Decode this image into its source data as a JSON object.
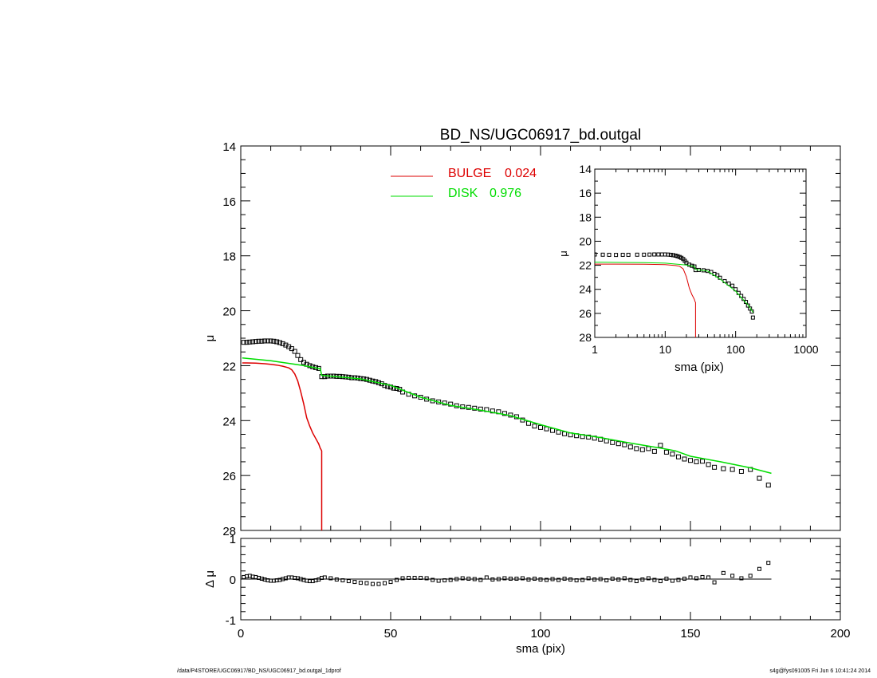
{
  "colors": {
    "bulge": "#dd0000",
    "disk": "#00dd00",
    "data": "#000000",
    "axis": "#000000"
  },
  "footer": {
    "left": "/data/P4STORE/UGC06917/BD_NS/UGC06917_bd.outgal_1dprof",
    "right": "s4g@fys091005  Fri Jun  6 10:41:24 2014"
  },
  "chart_data": [
    {
      "id": "main",
      "type": "scatter",
      "title": "BD_NS/UGC06917_bd.outgal",
      "xlabel": "",
      "ylabel": "μ",
      "xlim": [
        0,
        200
      ],
      "ylim": [
        28,
        14
      ],
      "yticks": [
        "14",
        "16",
        "18",
        "20",
        "22",
        "24",
        "26",
        "28"
      ],
      "legend": {
        "placement": "top-center",
        "entries": [
          {
            "label": "BULGE",
            "value": "0.024",
            "color": "#dd0000"
          },
          {
            "label": "DISK",
            "value": "0.976",
            "color": "#00dd00"
          }
        ]
      },
      "series": [
        {
          "name": "data",
          "marker": "square",
          "x": [
            1,
            2,
            3,
            4,
            5,
            6,
            7,
            8,
            9,
            10,
            11,
            12,
            13,
            14,
            15,
            16,
            17,
            18,
            19,
            20,
            21,
            22,
            23,
            24,
            25,
            26,
            27,
            28,
            29,
            30,
            31,
            32,
            33,
            34,
            35,
            36,
            37,
            38,
            39,
            40,
            41,
            42,
            43,
            44,
            45,
            46,
            47,
            48,
            49,
            50,
            51,
            52,
            53,
            54,
            56,
            58,
            60,
            62,
            64,
            66,
            68,
            70,
            72,
            74,
            76,
            78,
            80,
            82,
            84,
            86,
            88,
            90,
            92,
            94,
            96,
            98,
            100,
            102,
            104,
            106,
            108,
            110,
            112,
            114,
            116,
            118,
            120,
            122,
            124,
            126,
            128,
            130,
            132,
            134,
            136,
            138,
            140,
            142,
            144,
            146,
            148,
            150,
            152,
            154,
            156,
            158,
            161,
            164,
            167,
            170,
            173,
            176
          ],
          "y": [
            21.15,
            21.15,
            21.14,
            21.13,
            21.12,
            21.11,
            21.11,
            21.1,
            21.1,
            21.1,
            21.11,
            21.13,
            21.16,
            21.2,
            21.25,
            21.31,
            21.38,
            21.48,
            21.63,
            21.78,
            21.88,
            21.95,
            22.0,
            22.04,
            22.07,
            22.1,
            22.4,
            22.4,
            22.38,
            22.38,
            22.38,
            22.39,
            22.39,
            22.4,
            22.41,
            22.42,
            22.44,
            22.44,
            22.45,
            22.47,
            22.48,
            22.5,
            22.53,
            22.56,
            22.58,
            22.62,
            22.66,
            22.72,
            22.76,
            22.78,
            22.82,
            22.83,
            22.86,
            22.96,
            23.04,
            23.1,
            23.15,
            23.22,
            23.28,
            23.32,
            23.36,
            23.4,
            23.46,
            23.5,
            23.52,
            23.55,
            23.58,
            23.6,
            23.65,
            23.68,
            23.74,
            23.8,
            23.86,
            23.98,
            24.1,
            24.2,
            24.25,
            24.3,
            24.36,
            24.42,
            24.48,
            24.52,
            24.55,
            24.58,
            24.6,
            24.64,
            24.68,
            24.74,
            24.8,
            24.84,
            24.88,
            24.96,
            25.02,
            25.06,
            25.02,
            25.12,
            24.9,
            25.15,
            25.22,
            25.32,
            25.4,
            25.45,
            25.5,
            25.48,
            25.6,
            25.7,
            25.75,
            25.78,
            25.85,
            25.78,
            26.1,
            26.35
          ]
        },
        {
          "name": "BULGE",
          "type": "line",
          "color": "#dd0000",
          "x": [
            0.5,
            2,
            5,
            8,
            10,
            12,
            14,
            16,
            17,
            18,
            19,
            20,
            21,
            22,
            23,
            24,
            25,
            26,
            26.5,
            27,
            27,
            27
          ],
          "y": [
            21.9,
            21.9,
            21.91,
            21.93,
            21.95,
            21.98,
            22.02,
            22.08,
            22.15,
            22.3,
            22.55,
            22.95,
            23.4,
            23.9,
            24.2,
            24.45,
            24.65,
            24.85,
            25.0,
            25.1,
            27.0,
            28.0
          ]
        },
        {
          "name": "DISK",
          "type": "line",
          "color": "#00dd00",
          "x": [
            0.5,
            10,
            20,
            26,
            26.5,
            27,
            40,
            50,
            60,
            70,
            80,
            90,
            100,
            110,
            120,
            130,
            140,
            145,
            150,
            160,
            170,
            177
          ],
          "y": [
            21.72,
            21.82,
            21.98,
            22.1,
            22.1,
            22.35,
            22.48,
            22.72,
            23.15,
            23.45,
            23.62,
            23.82,
            24.15,
            24.45,
            24.62,
            24.82,
            25.0,
            25.1,
            25.3,
            25.5,
            25.72,
            25.92
          ]
        }
      ]
    },
    {
      "id": "residual",
      "type": "scatter",
      "xlabel": "sma (pix)",
      "ylabel": "Δ μ",
      "xlim": [
        0,
        200
      ],
      "ylim": [
        -1,
        1
      ],
      "xticks": [
        "0",
        "50",
        "100",
        "150",
        "200"
      ],
      "yticks": [
        "1",
        "0",
        "-1"
      ],
      "series": [
        {
          "name": "residual",
          "marker": "square",
          "x": [
            1,
            2,
            3,
            4,
            5,
            6,
            7,
            8,
            9,
            10,
            11,
            12,
            13,
            14,
            15,
            16,
            17,
            18,
            19,
            20,
            21,
            22,
            23,
            24,
            25,
            26,
            27,
            28,
            30,
            32,
            34,
            36,
            38,
            40,
            42,
            44,
            46,
            48,
            50,
            52,
            54,
            56,
            58,
            60,
            62,
            64,
            66,
            68,
            70,
            72,
            74,
            76,
            78,
            80,
            82,
            84,
            86,
            88,
            90,
            92,
            94,
            96,
            98,
            100,
            102,
            104,
            106,
            108,
            110,
            112,
            114,
            116,
            118,
            120,
            122,
            124,
            126,
            128,
            130,
            132,
            134,
            136,
            138,
            140,
            142,
            144,
            146,
            148,
            150,
            152,
            154,
            156,
            158,
            161,
            164,
            167,
            170,
            173,
            176
          ],
          "y": [
            0.05,
            0.07,
            0.08,
            0.06,
            0.05,
            0.03,
            0.01,
            -0.01,
            -0.03,
            -0.04,
            -0.04,
            -0.03,
            -0.02,
            0.0,
            0.02,
            0.04,
            0.04,
            0.03,
            0.02,
            0.0,
            -0.02,
            -0.04,
            -0.05,
            -0.05,
            -0.03,
            -0.01,
            0.03,
            0.04,
            0.02,
            -0.01,
            -0.03,
            -0.05,
            -0.07,
            -0.09,
            -0.1,
            -0.12,
            -0.12,
            -0.1,
            -0.07,
            -0.02,
            0.02,
            0.03,
            0.03,
            0.03,
            0.02,
            -0.02,
            -0.04,
            -0.03,
            -0.02,
            0.0,
            0.02,
            0.01,
            0.0,
            -0.02,
            0.04,
            -0.01,
            0.0,
            0.02,
            0.01,
            0.01,
            0.02,
            -0.01,
            0.01,
            -0.01,
            -0.02,
            0.0,
            -0.02,
            0.01,
            -0.01,
            -0.03,
            -0.02,
            0.02,
            -0.01,
            0.0,
            -0.03,
            0.01,
            -0.01,
            0.02,
            -0.02,
            -0.05,
            -0.01,
            0.02,
            -0.02,
            -0.05,
            0.01,
            -0.04,
            -0.02,
            0.01,
            0.04,
            0.02,
            0.05,
            0.04,
            -0.08,
            0.15,
            0.08,
            0.02,
            0.08,
            0.25,
            0.4
          ]
        }
      ]
    },
    {
      "id": "inset",
      "type": "scatter",
      "xlabel": "sma (pix)",
      "ylabel": "μ",
      "xscale": "log",
      "xlim": [
        1,
        1000
      ],
      "ylim": [
        28,
        14
      ],
      "xticks": [
        "1",
        "10",
        "100",
        "1000"
      ],
      "yticks": [
        "14",
        "16",
        "18",
        "20",
        "22",
        "24",
        "26",
        "28"
      ],
      "series": [
        {
          "name": "data",
          "marker": "square",
          "x": [
            1.0,
            1.3,
            1.6,
            2,
            2.5,
            3,
            4,
            5,
            6,
            7,
            8,
            9,
            10,
            11,
            12,
            13,
            14,
            15,
            16,
            17,
            18,
            19,
            20,
            22,
            24,
            26,
            27,
            30,
            35,
            40,
            45,
            50,
            55,
            60,
            70,
            80,
            90,
            100,
            110,
            120,
            130,
            140,
            150,
            160,
            170,
            176
          ],
          "y": [
            21.1,
            21.12,
            21.13,
            21.14,
            21.13,
            21.13,
            21.12,
            21.12,
            21.11,
            21.1,
            21.1,
            21.1,
            21.1,
            21.11,
            21.13,
            21.16,
            21.2,
            21.25,
            21.31,
            21.38,
            21.48,
            21.63,
            21.78,
            21.95,
            22.04,
            22.1,
            22.4,
            22.39,
            22.42,
            22.47,
            22.56,
            22.72,
            22.83,
            23.04,
            23.32,
            23.52,
            23.7,
            24.0,
            24.3,
            24.55,
            24.8,
            25.05,
            25.35,
            25.6,
            25.85,
            26.35
          ]
        },
        {
          "name": "BULGE",
          "type": "line",
          "color": "#dd0000",
          "x": [
            1,
            2,
            5,
            10,
            14,
            16,
            18,
            20,
            22,
            24,
            25,
            26,
            26.5,
            27,
            27
          ],
          "y": [
            21.9,
            21.9,
            21.91,
            21.95,
            22.02,
            22.08,
            22.3,
            22.95,
            23.9,
            24.45,
            24.65,
            24.85,
            25.0,
            25.1,
            28.0
          ]
        },
        {
          "name": "DISK",
          "type": "line",
          "color": "#00dd00",
          "x": [
            1,
            2,
            5,
            10,
            20,
            26,
            27,
            40,
            60,
            100,
            150,
            177
          ],
          "y": [
            21.75,
            21.76,
            21.78,
            21.82,
            21.98,
            22.1,
            22.35,
            22.48,
            23.15,
            24.15,
            25.3,
            25.92
          ]
        }
      ]
    }
  ]
}
